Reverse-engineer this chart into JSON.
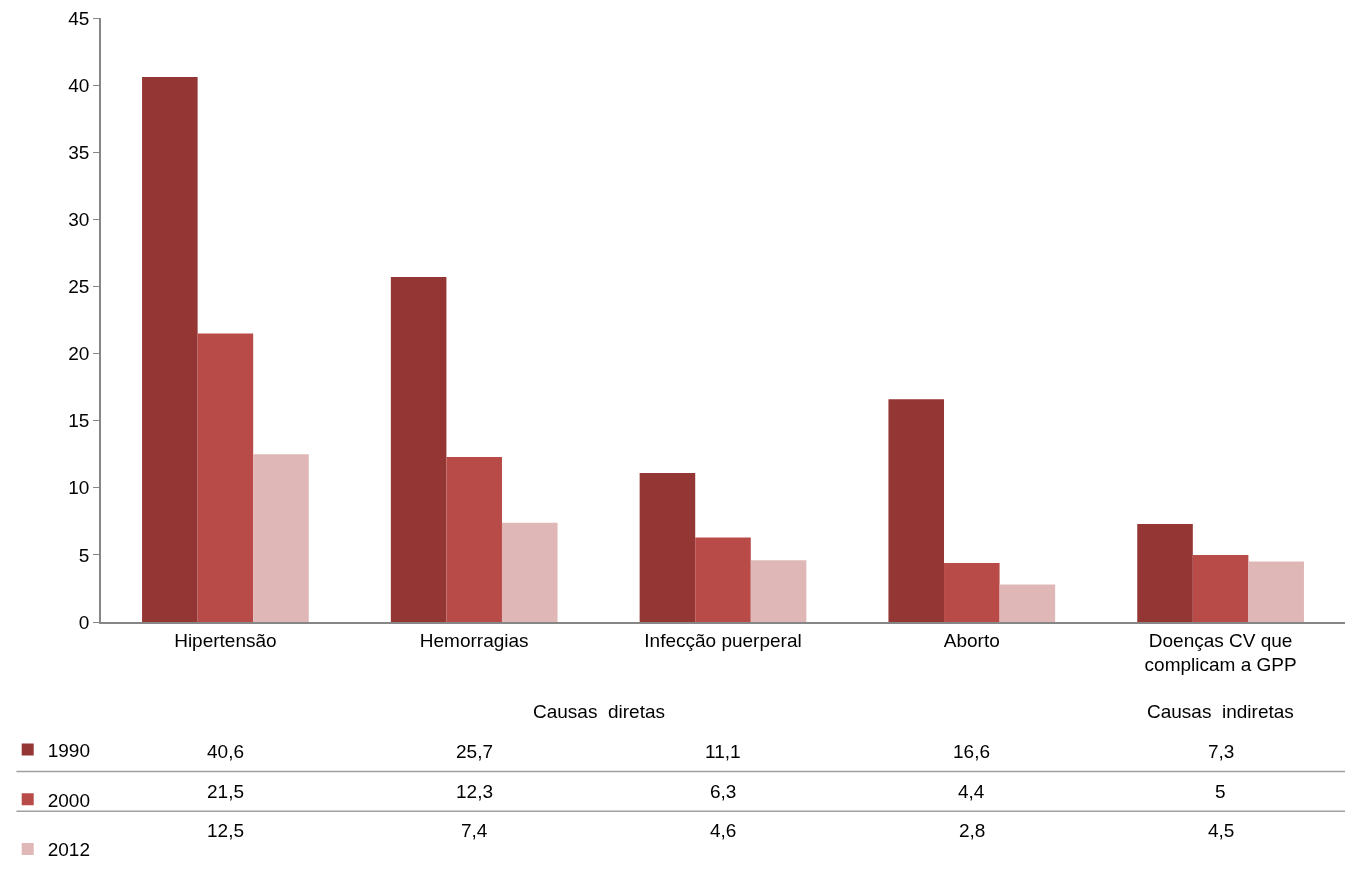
{
  "chart_data": {
    "type": "bar",
    "categories": [
      "Hipertensão",
      "Hemorragias",
      "Infecção puerperal",
      "Aborto",
      "Doenças CV que complicam a GPP"
    ],
    "series": [
      {
        "name": "1990",
        "color": "#943634",
        "values": [
          40.6,
          25.7,
          11.1,
          16.6,
          7.3
        ],
        "value_labels": [
          "40,6",
          "25,7",
          "11,1",
          "16,6",
          "7,3"
        ]
      },
      {
        "name": "2000",
        "color": "#b84b48",
        "values": [
          21.5,
          12.3,
          6.3,
          4.4,
          5
        ],
        "value_labels": [
          "21,5",
          "12,3",
          "6,3",
          "4,4",
          "5"
        ]
      },
      {
        "name": "2012",
        "color": "#dfb7b7",
        "values": [
          12.5,
          7.4,
          4.6,
          2.8,
          4.5
        ],
        "value_labels": [
          "12,5",
          "7,4",
          "4,6",
          "2,8",
          "4,5"
        ]
      }
    ],
    "ylim": [
      0,
      45
    ],
    "yticks": [
      0,
      5,
      10,
      15,
      20,
      25,
      30,
      35,
      40,
      45
    ],
    "grid": false,
    "legend": "bottom left",
    "annotations": [
      "Causas  diretas",
      "Causas  indiretas"
    ]
  }
}
